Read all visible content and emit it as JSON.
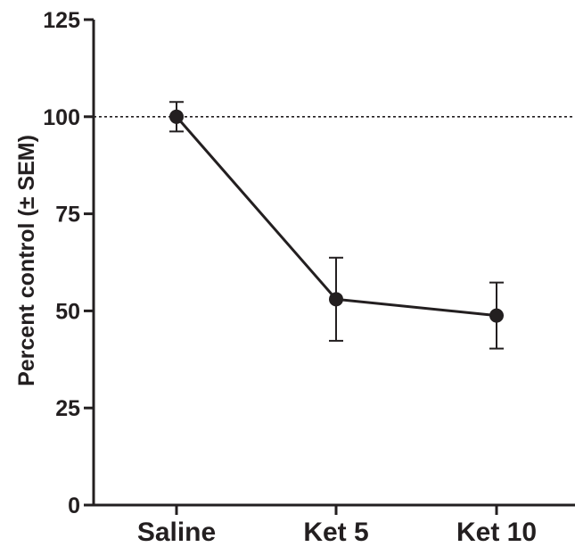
{
  "chart_data": {
    "type": "line",
    "categories": [
      "Saline",
      "Ket 5",
      "Ket 10"
    ],
    "series": [
      {
        "values": [
          100,
          53,
          48.8
        ],
        "sem": [
          3.8,
          10.7,
          8.5
        ]
      }
    ],
    "reference_line": {
      "y": 100,
      "style": "dotted"
    },
    "xlabel": "",
    "ylabel": "Percent control (± SEM)",
    "ylim": [
      0,
      125
    ],
    "yticks": [
      0,
      25,
      50,
      75,
      100,
      125
    ],
    "grid": false,
    "legend": "none",
    "colors": {
      "line": "#231f20",
      "marker": "#231f20"
    }
  }
}
